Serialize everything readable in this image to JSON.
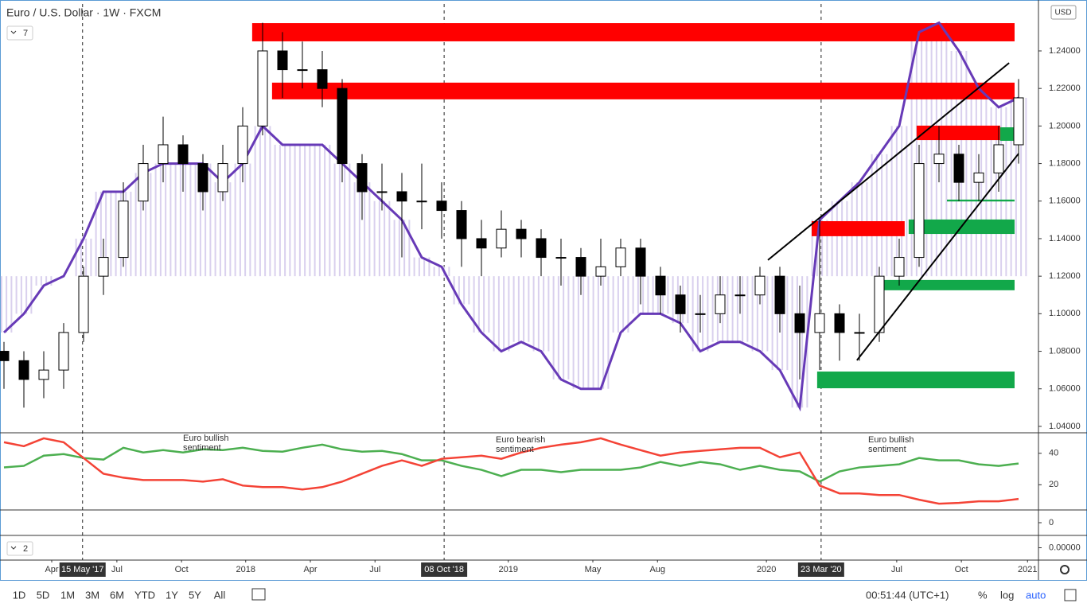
{
  "ui": {
    "title": "Euro / U.S. Dollar · 1W · FXCM",
    "indicator_count": "7",
    "currency": "USD",
    "pane_count": "2",
    "ranges": [
      "1D",
      "5D",
      "1M",
      "3M",
      "6M",
      "YTD",
      "1Y",
      "5Y",
      "All"
    ],
    "clock": "00:51:44 (UTC+1)",
    "percent": "%",
    "log": "log",
    "auto": "auto"
  },
  "chart_data": [
    {
      "type": "candlestick",
      "xlim": [
        -0.8,
        208
      ],
      "ylim": [
        1.037,
        1.265
      ],
      "xticks": [
        {
          "value": 9.6,
          "label": "Apr"
        },
        {
          "value": 15.8,
          "label": "15 May '17"
        },
        {
          "value": 22.7,
          "label": "Jul"
        },
        {
          "value": 35.7,
          "label": "Oct"
        },
        {
          "value": 48.6,
          "label": "2018"
        },
        {
          "value": 61.6,
          "label": "Apr"
        },
        {
          "value": 74.6,
          "label": "Jul"
        },
        {
          "value": 88.5,
          "label": "08 Oct '18"
        },
        {
          "value": 101.4,
          "label": "2019"
        },
        {
          "value": 118.4,
          "label": "May"
        },
        {
          "value": 131.4,
          "label": "Aug"
        },
        {
          "value": 153.3,
          "label": "2020"
        },
        {
          "value": 164.3,
          "label": "23 Mar '20"
        },
        {
          "value": 179.5,
          "label": "Jul"
        },
        {
          "value": 192.5,
          "label": "Oct"
        },
        {
          "value": 205.8,
          "label": "2021"
        }
      ],
      "marked_xticks": [
        1,
        7,
        12
      ],
      "yticks": [
        {
          "value": 1.04,
          "label": "1.04000"
        },
        {
          "value": 1.06,
          "label": "1.06000"
        },
        {
          "value": 1.08,
          "label": "1.08000"
        },
        {
          "value": 1.1,
          "label": "1.10000"
        },
        {
          "value": 1.12,
          "label": "1.12000"
        },
        {
          "value": 1.14,
          "label": "1.14000"
        },
        {
          "value": 1.16,
          "label": "1.16000"
        },
        {
          "value": 1.18,
          "label": "1.18000"
        },
        {
          "value": 1.2,
          "label": "1.20000"
        },
        {
          "value": 1.22,
          "label": "1.22000"
        },
        {
          "value": 1.24,
          "label": "1.24000"
        }
      ],
      "x": [
        0,
        4,
        8,
        12,
        16,
        20,
        24,
        28,
        32,
        36,
        40,
        44,
        48,
        52,
        56,
        60,
        64,
        68,
        72,
        76,
        80,
        84,
        88,
        92,
        96,
        100,
        104,
        108,
        112,
        116,
        120,
        124,
        128,
        132,
        136,
        140,
        144,
        148,
        152,
        156,
        160,
        164,
        168,
        172,
        176,
        180,
        184,
        188,
        192,
        196,
        200,
        204
      ],
      "open": [
        1.08,
        1.075,
        1.065,
        1.07,
        1.09,
        1.12,
        1.13,
        1.16,
        1.18,
        1.19,
        1.18,
        1.165,
        1.18,
        1.2,
        1.24,
        1.23,
        1.23,
        1.22,
        1.18,
        1.165,
        1.165,
        1.16,
        1.16,
        1.155,
        1.14,
        1.135,
        1.145,
        1.14,
        1.13,
        1.13,
        1.12,
        1.125,
        1.135,
        1.12,
        1.11,
        1.1,
        1.1,
        1.11,
        1.11,
        1.12,
        1.1,
        1.09,
        1.1,
        1.09,
        1.09,
        1.12,
        1.13,
        1.18,
        1.185,
        1.17,
        1.175,
        1.19
      ],
      "high": [
        1.085,
        1.08,
        1.08,
        1.095,
        1.125,
        1.14,
        1.17,
        1.19,
        1.205,
        1.195,
        1.185,
        1.19,
        1.21,
        1.255,
        1.25,
        1.245,
        1.24,
        1.225,
        1.185,
        1.18,
        1.175,
        1.18,
        1.17,
        1.16,
        1.15,
        1.155,
        1.15,
        1.145,
        1.14,
        1.135,
        1.14,
        1.14,
        1.14,
        1.125,
        1.115,
        1.11,
        1.12,
        1.12,
        1.125,
        1.125,
        1.115,
        1.15,
        1.105,
        1.1,
        1.125,
        1.14,
        1.19,
        1.2,
        1.19,
        1.185,
        1.2,
        1.225
      ],
      "low": [
        1.06,
        1.05,
        1.055,
        1.06,
        1.085,
        1.11,
        1.125,
        1.155,
        1.17,
        1.165,
        1.155,
        1.16,
        1.17,
        1.195,
        1.215,
        1.22,
        1.21,
        1.17,
        1.15,
        1.155,
        1.13,
        1.145,
        1.14,
        1.125,
        1.12,
        1.13,
        1.13,
        1.12,
        1.115,
        1.11,
        1.115,
        1.12,
        1.105,
        1.1,
        1.09,
        1.09,
        1.095,
        1.1,
        1.105,
        1.09,
        1.065,
        1.07,
        1.075,
        1.075,
        1.085,
        1.115,
        1.125,
        1.17,
        1.16,
        1.16,
        1.165,
        1.18
      ],
      "close": [
        1.075,
        1.065,
        1.07,
        1.09,
        1.12,
        1.13,
        1.16,
        1.18,
        1.19,
        1.18,
        1.165,
        1.18,
        1.2,
        1.24,
        1.23,
        1.23,
        1.22,
        1.18,
        1.165,
        1.165,
        1.16,
        1.16,
        1.155,
        1.14,
        1.135,
        1.145,
        1.14,
        1.13,
        1.13,
        1.12,
        1.125,
        1.135,
        1.12,
        1.11,
        1.1,
        1.1,
        1.11,
        1.11,
        1.12,
        1.1,
        1.09,
        1.1,
        1.09,
        1.09,
        1.12,
        1.13,
        1.18,
        1.185,
        1.17,
        1.175,
        1.19,
        1.215
      ],
      "up_color": "#ffffff",
      "down_color": "#000000",
      "overlay": {
        "color": "#673ab7",
        "fill": "#d9d0ee",
        "baseline": 1.12,
        "values": [
          1.09,
          1.1,
          1.115,
          1.12,
          1.14,
          1.165,
          1.165,
          1.175,
          1.18,
          1.18,
          1.18,
          1.17,
          1.18,
          1.2,
          1.19,
          1.19,
          1.19,
          1.18,
          1.17,
          1.16,
          1.15,
          1.13,
          1.125,
          1.105,
          1.09,
          1.08,
          1.085,
          1.08,
          1.065,
          1.06,
          1.06,
          1.09,
          1.1,
          1.1,
          1.095,
          1.08,
          1.085,
          1.085,
          1.08,
          1.07,
          1.05,
          1.15,
          1.16,
          1.17,
          1.185,
          1.2,
          1.25,
          1.255,
          1.24,
          1.22,
          1.21,
          1.215
        ]
      },
      "zones": [
        {
          "x": [
            49.9,
            203.2
          ],
          "y": [
            1.2451,
            1.2548
          ],
          "color": "#ff0000"
        },
        {
          "x": [
            53.9,
            203.2
          ],
          "y": [
            1.2142,
            1.2231
          ],
          "color": "#ff0000"
        },
        {
          "x": [
            183.5,
            200.3
          ],
          "y": [
            1.1925,
            1.2002
          ],
          "color": "#ff0000"
        },
        {
          "x": [
            162.4,
            181.1
          ],
          "y": [
            1.1413,
            1.1493
          ],
          "color": "#ff0000"
        },
        {
          "x": [
            200.3,
            203.2
          ],
          "y": [
            1.1921,
            1.1993
          ],
          "color": "#12a84a"
        },
        {
          "x": [
            181.9,
            203.2
          ],
          "y": [
            1.1425,
            1.1502
          ],
          "color": "#12a84a"
        },
        {
          "x": [
            175.5,
            203.2
          ],
          "y": [
            1.1125,
            1.118
          ],
          "color": "#12a84a"
        },
        {
          "x": [
            163.5,
            203.2
          ],
          "y": [
            1.0603,
            1.0692
          ],
          "color": "#12a84a"
        },
        {
          "x": [
            189.6,
            203.2
          ],
          "y": [
            1.1598,
            1.1608
          ],
          "color": "#12a84a"
        }
      ],
      "trend_lines": [
        {
          "x": [
            153.6,
            202.1
          ],
          "y": [
            1.1286,
            1.2336
          ]
        },
        {
          "x": [
            171.5,
            204
          ],
          "y": [
            1.0752,
            1.1853
          ]
        }
      ]
    },
    {
      "type": "line",
      "xlim": [
        -0.8,
        208
      ],
      "ylim": [
        4.5,
        52
      ],
      "yticks": [
        20,
        40
      ],
      "x": [
        0,
        4,
        8,
        12,
        16,
        20,
        24,
        28,
        32,
        36,
        40,
        44,
        48,
        52,
        56,
        60,
        64,
        68,
        72,
        76,
        80,
        84,
        88,
        92,
        96,
        100,
        104,
        108,
        112,
        116,
        120,
        124,
        128,
        132,
        136,
        140,
        144,
        148,
        152,
        156,
        160,
        164,
        168,
        172,
        176,
        180,
        184,
        188,
        192,
        196,
        200,
        204
      ],
      "series": [
        {
          "color": "#4caf50",
          "values": [
            31,
            32,
            38.5,
            39.5,
            37,
            36,
            43.5,
            40.5,
            42,
            40.5,
            42.5,
            42,
            43.5,
            41.5,
            41,
            43.5,
            45.5,
            42.5,
            41,
            41.5,
            39.5,
            35.5,
            35.5,
            32,
            29.5,
            25.5,
            29.5,
            29.5,
            28,
            29.5,
            29.5,
            29.5,
            31,
            34.5,
            32,
            34.5,
            33,
            29.5,
            32,
            29.5,
            28.5,
            22,
            28.5,
            31,
            32,
            33,
            37,
            35.5,
            35.5,
            33,
            32,
            33.5
          ]
        },
        {
          "color": "#f44336",
          "values": [
            47,
            44.5,
            49.5,
            47,
            37,
            27,
            24.5,
            23,
            23,
            23,
            22,
            23.5,
            19.5,
            18.5,
            18.5,
            17,
            18.5,
            22,
            27,
            32,
            35.5,
            32,
            36.5,
            37.5,
            38.5,
            36.5,
            40.5,
            43.5,
            45.5,
            47,
            49.5,
            45.5,
            42,
            38.5,
            40.5,
            41.5,
            42.5,
            43.5,
            43.5,
            37.5,
            40.5,
            19.5,
            14.5,
            14.5,
            13.5,
            13.5,
            10.5,
            8,
            8.5,
            9.5,
            9.5,
            11
          ]
        }
      ],
      "annotations": [
        [
          "Euro bullish",
          "sentiment"
        ],
        [
          "Euro bearish",
          "sentiment"
        ],
        [
          "Euro bullish",
          "sentiment"
        ]
      ]
    },
    {
      "type": "line",
      "ylim": [
        -1,
        1
      ],
      "yticks": [
        0
      ]
    },
    {
      "type": "line",
      "ylim": [
        -1,
        1
      ],
      "yticks": [
        {
          "value": 0,
          "label": "0.00000"
        }
      ]
    }
  ]
}
